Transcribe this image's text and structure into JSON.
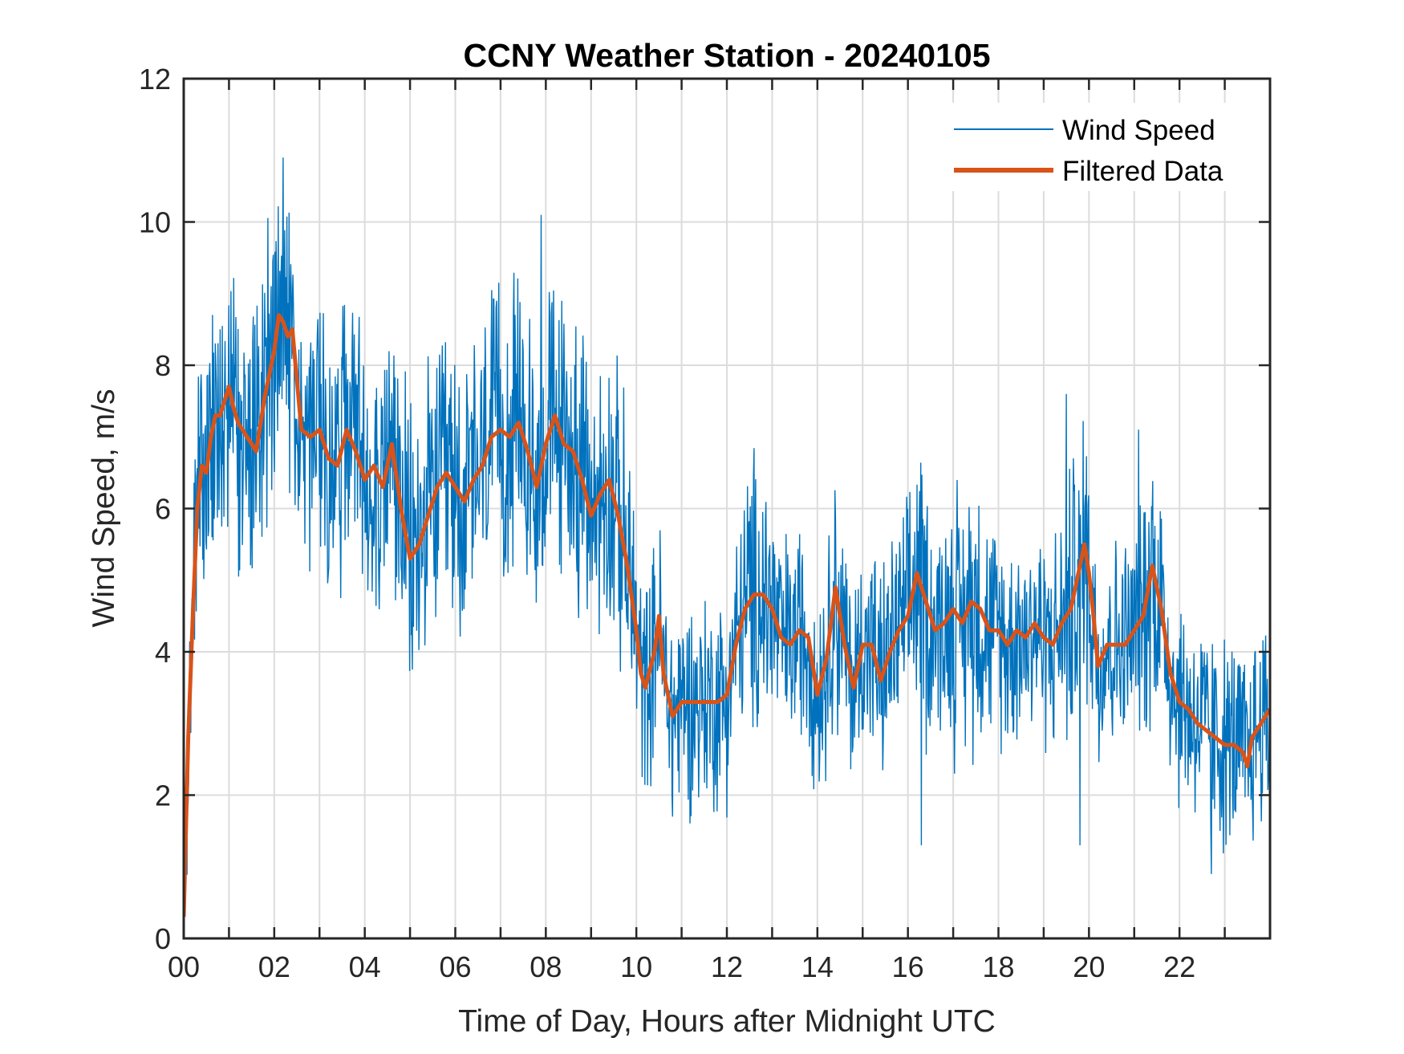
{
  "chart_data": {
    "type": "line",
    "title": "CCNY Weather Station - 20240105",
    "xlabel": "Time of Day, Hours after Midnight UTC",
    "ylabel": "Wind Speed, m/s",
    "xlim": [
      0,
      24
    ],
    "ylim": [
      0,
      12
    ],
    "grid": true,
    "legend_position": "top-right",
    "x_ticks": [
      0,
      2,
      4,
      6,
      8,
      10,
      12,
      14,
      16,
      18,
      20,
      22
    ],
    "x_tick_labels": [
      "00",
      "02",
      "04",
      "06",
      "08",
      "10",
      "12",
      "14",
      "16",
      "18",
      "20",
      "22"
    ],
    "x_minor_grid_step_hours": 1,
    "y_ticks": [
      0,
      2,
      4,
      6,
      8,
      10,
      12
    ],
    "y_tick_labels": [
      "0",
      "2",
      "4",
      "6",
      "8",
      "10",
      "12"
    ],
    "series": [
      {
        "name": "Wind Speed",
        "color": "#0072BD",
        "style": "thin",
        "description": "Noisy raw wind speed samples fluctuating roughly ±2.5 m/s around the filtered trend; overall max ≈10.9 m/s near 02:15, min ≈0.3 m/s at 00:00",
        "noise_amplitude": 2.4,
        "sample_step_hours": 0.012,
        "notable_peaks": [
          {
            "x": 2.2,
            "y": 10.9
          },
          {
            "x": 7.9,
            "y": 10.1
          },
          {
            "x": 19.5,
            "y": 7.6
          },
          {
            "x": 21.1,
            "y": 7.1
          }
        ],
        "notable_troughs": [
          {
            "x": 10.8,
            "y": 1.7
          },
          {
            "x": 16.3,
            "y": 1.3
          },
          {
            "x": 19.8,
            "y": 1.3
          },
          {
            "x": 22.7,
            "y": 0.9
          }
        ]
      },
      {
        "name": "Filtered Data",
        "color": "#D95319",
        "style": "thick",
        "x": [
          0.0,
          0.1,
          0.2,
          0.3,
          0.4,
          0.5,
          0.6,
          0.7,
          0.8,
          0.9,
          1.0,
          1.1,
          1.2,
          1.4,
          1.6,
          1.8,
          2.0,
          2.1,
          2.2,
          2.3,
          2.4,
          2.5,
          2.6,
          2.8,
          3.0,
          3.2,
          3.4,
          3.6,
          3.8,
          4.0,
          4.2,
          4.4,
          4.6,
          4.8,
          5.0,
          5.2,
          5.4,
          5.6,
          5.8,
          6.0,
          6.2,
          6.4,
          6.6,
          6.8,
          7.0,
          7.2,
          7.4,
          7.6,
          7.8,
          8.0,
          8.2,
          8.4,
          8.6,
          8.8,
          9.0,
          9.2,
          9.4,
          9.6,
          9.8,
          10.0,
          10.1,
          10.2,
          10.4,
          10.5,
          10.6,
          10.8,
          11.0,
          11.2,
          11.4,
          11.6,
          11.8,
          12.0,
          12.2,
          12.4,
          12.6,
          12.8,
          13.0,
          13.2,
          13.4,
          13.6,
          13.8,
          14.0,
          14.2,
          14.4,
          14.6,
          14.8,
          15.0,
          15.2,
          15.4,
          15.6,
          15.8,
          16.0,
          16.2,
          16.4,
          16.6,
          16.8,
          17.0,
          17.2,
          17.4,
          17.6,
          17.8,
          18.0,
          18.2,
          18.4,
          18.6,
          18.8,
          19.0,
          19.2,
          19.4,
          19.6,
          19.8,
          19.9,
          20.0,
          20.1,
          20.2,
          20.4,
          20.6,
          20.8,
          21.0,
          21.2,
          21.4,
          21.6,
          21.8,
          22.0,
          22.2,
          22.4,
          22.6,
          22.8,
          23.0,
          23.2,
          23.4,
          23.5,
          23.6,
          23.8,
          24.0
        ],
        "y": [
          0.3,
          2.8,
          4.5,
          6.0,
          6.6,
          6.5,
          7.0,
          7.3,
          7.3,
          7.5,
          7.7,
          7.4,
          7.2,
          7.0,
          6.8,
          7.6,
          8.2,
          8.7,
          8.6,
          8.4,
          8.5,
          7.8,
          7.1,
          7.0,
          7.1,
          6.7,
          6.6,
          7.1,
          6.8,
          6.4,
          6.6,
          6.3,
          6.9,
          6.0,
          5.3,
          5.5,
          5.9,
          6.3,
          6.5,
          6.3,
          6.1,
          6.4,
          6.6,
          7.0,
          7.1,
          7.0,
          7.2,
          6.8,
          6.3,
          6.9,
          7.3,
          6.9,
          6.8,
          6.4,
          5.9,
          6.2,
          6.4,
          5.9,
          5.2,
          4.3,
          3.7,
          3.5,
          4.0,
          4.5,
          3.7,
          3.1,
          3.3,
          3.3,
          3.3,
          3.3,
          3.3,
          3.4,
          4.1,
          4.6,
          4.8,
          4.8,
          4.6,
          4.2,
          4.1,
          4.3,
          4.2,
          3.4,
          3.9,
          4.9,
          4.1,
          3.5,
          4.1,
          4.1,
          3.6,
          4.0,
          4.3,
          4.5,
          5.1,
          4.7,
          4.3,
          4.4,
          4.6,
          4.4,
          4.7,
          4.6,
          4.3,
          4.3,
          4.1,
          4.3,
          4.2,
          4.4,
          4.2,
          4.1,
          4.4,
          4.6,
          5.2,
          5.5,
          5.1,
          4.5,
          3.8,
          4.1,
          4.1,
          4.1,
          4.3,
          4.5,
          5.2,
          4.6,
          3.7,
          3.3,
          3.2,
          3.0,
          2.9,
          2.8,
          2.7,
          2.7,
          2.6,
          2.4,
          2.8,
          3.0,
          3.2
        ]
      }
    ]
  }
}
